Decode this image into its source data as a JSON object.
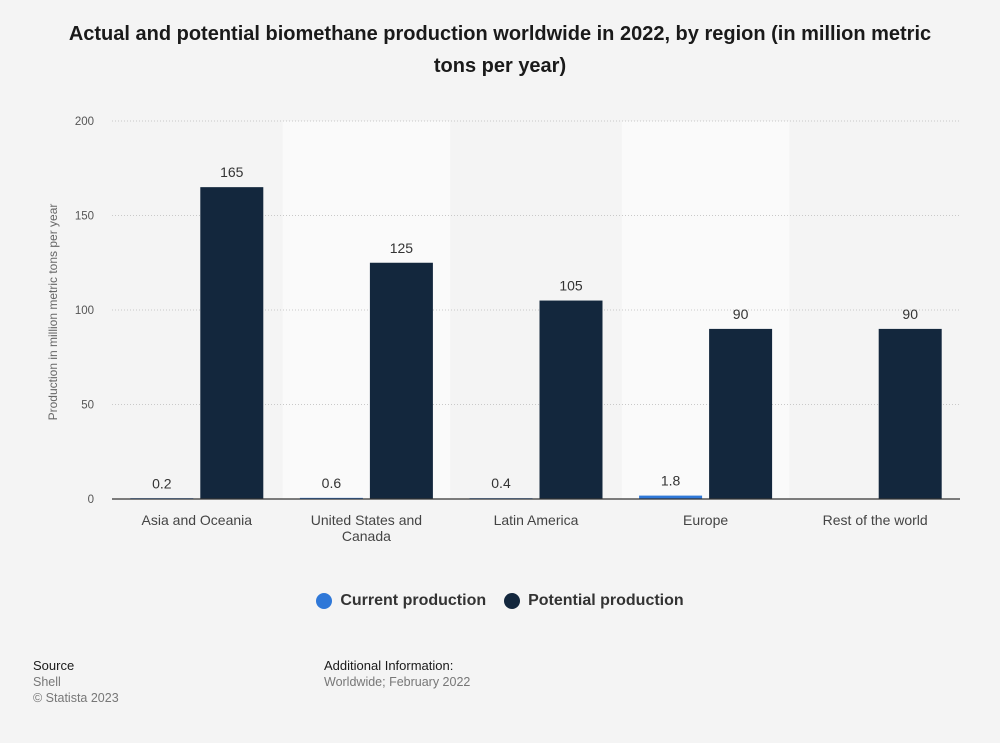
{
  "title": "Actual and potential biomethane production worldwide in 2022, by region (in million metric tons per year)",
  "chart_data": {
    "type": "bar",
    "title": "Actual and potential biomethane production worldwide in 2022, by region (in million metric tons per year)",
    "xlabel": "",
    "ylabel": "Production in million metric tons per year",
    "categories": [
      "Asia and Oceania",
      "United States and Canada",
      "Latin America",
      "Europe",
      "Rest of the world"
    ],
    "series": [
      {
        "name": "Current production",
        "values": [
          0.2,
          0.6,
          0.4,
          1.8,
          null
        ],
        "labels": [
          "0.2",
          "0.6",
          "0.4",
          "1.8",
          ""
        ],
        "color": "#2f78d8"
      },
      {
        "name": "Potential production",
        "values": [
          165,
          125,
          105,
          90,
          90
        ],
        "labels": [
          "165",
          "125",
          "105",
          "90",
          "90"
        ],
        "color": "#13273d"
      }
    ],
    "yticks": [
      0,
      50,
      100,
      150,
      200
    ],
    "ylim": [
      0,
      200
    ],
    "grid": true,
    "legend": "bottom-center"
  },
  "footer": {
    "source_heading": "Source",
    "source_name": "Shell",
    "copyright": "© Statista 2023",
    "info_heading": "Additional Information:",
    "info_text": "Worldwide; February 2022"
  },
  "colors": {
    "background": "#f4f4f4",
    "alt_band": "#fafafa",
    "current": "#2f78d8",
    "potential": "#13273d"
  }
}
